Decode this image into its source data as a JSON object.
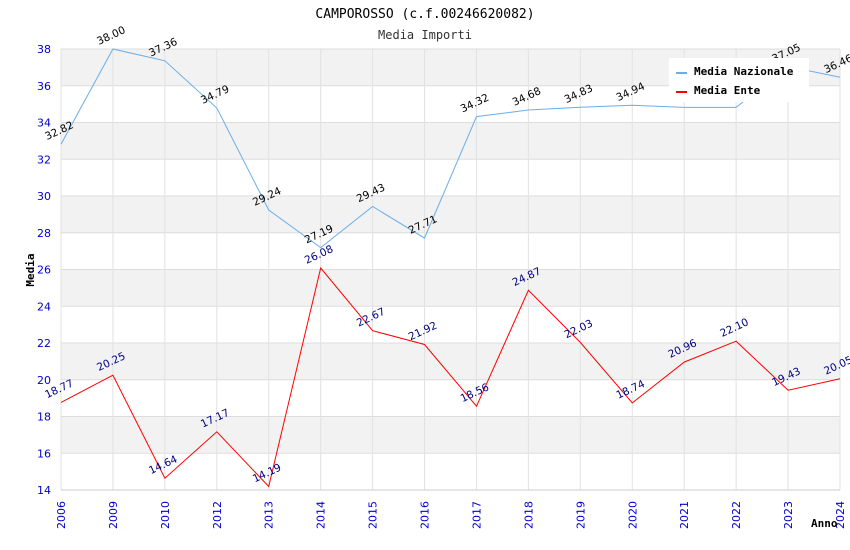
{
  "chart_data": {
    "type": "line",
    "title": "CAMPOROSSO (c.f.00246620082)",
    "subtitle": "Media Importi",
    "xlabel": "Anno",
    "ylabel": "Media",
    "ylim": [
      14,
      38
    ],
    "yticks": [
      "14",
      "16",
      "18",
      "20",
      "22",
      "24",
      "26",
      "28",
      "30",
      "32",
      "34",
      "36",
      "38"
    ],
    "categories": [
      "2006",
      "2009",
      "2010",
      "2012",
      "2013",
      "2014",
      "2015",
      "2016",
      "2017",
      "2018",
      "2019",
      "2020",
      "2021",
      "2022",
      "2023",
      "2024"
    ],
    "series": [
      {
        "name": "Media Nazionale",
        "color": "#6aaee8",
        "values": [
          32.82,
          38.0,
          37.36,
          34.79,
          29.24,
          27.19,
          29.43,
          27.71,
          34.32,
          34.68,
          34.83,
          34.94,
          34.82,
          34.82,
          37.05,
          36.46
        ],
        "labels": [
          "32.82",
          "38.00",
          "37.36",
          "34.79",
          "29.24",
          "27.19",
          "29.43",
          "27.71",
          "34.32",
          "34.68",
          "34.83",
          "34.94",
          "",
          "",
          "37.05",
          "36.46"
        ]
      },
      {
        "name": "Media Ente",
        "color": "#ff0000",
        "values": [
          18.77,
          20.25,
          14.64,
          17.17,
          14.19,
          26.08,
          22.67,
          21.92,
          18.56,
          24.87,
          22.03,
          18.74,
          20.96,
          22.1,
          19.43,
          20.05
        ],
        "labels": [
          "18.77",
          "20.25",
          "14.64",
          "17.17",
          "14.19",
          "26.08",
          "22.67",
          "21.92",
          "18.56",
          "24.87",
          "22.03",
          "18.74",
          "20.96",
          "22.10",
          "19.43",
          "20.05"
        ]
      }
    ],
    "legend_position": "top-right",
    "grid": true
  }
}
